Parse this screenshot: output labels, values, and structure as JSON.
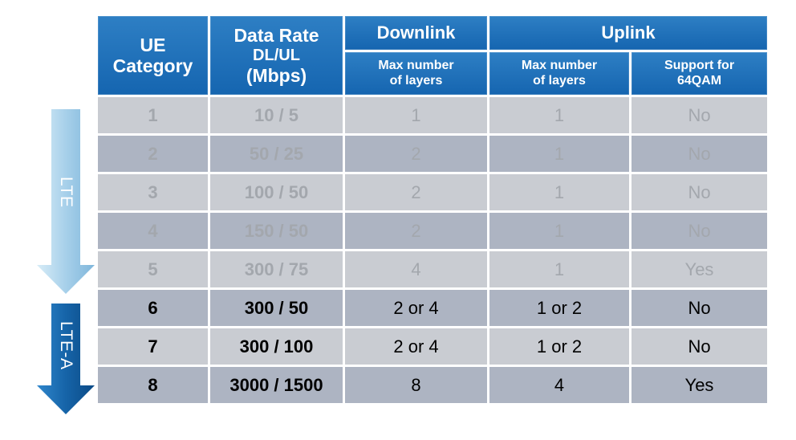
{
  "arrows": [
    {
      "label": "LTE",
      "color": "#a9cfe8"
    },
    {
      "label": "LTE-A",
      "color": "#1664a8"
    }
  ],
  "table": {
    "header": {
      "ue_category": "UE\nCategory",
      "data_rate": "Data Rate",
      "data_rate_sub": "DL/UL",
      "data_rate_unit": "(Mbps)",
      "downlink": "Downlink",
      "uplink": "Uplink",
      "dl_layers": "Max  number\nof layers",
      "ul_layers": "Max  number\nof layers",
      "ul_64qam": "Support for\n64QAM"
    },
    "rows": [
      {
        "category": "1",
        "rate": "10 / 5",
        "dl_layers": "1",
        "ul_layers": "1",
        "qam64": "No",
        "group": "LTE"
      },
      {
        "category": "2",
        "rate": "50 / 25",
        "dl_layers": "2",
        "ul_layers": "1",
        "qam64": "No",
        "group": "LTE"
      },
      {
        "category": "3",
        "rate": "100 / 50",
        "dl_layers": "2",
        "ul_layers": "1",
        "qam64": "No",
        "group": "LTE"
      },
      {
        "category": "4",
        "rate": "150 / 50",
        "dl_layers": "2",
        "ul_layers": "1",
        "qam64": "No",
        "group": "LTE"
      },
      {
        "category": "5",
        "rate": "300 / 75",
        "dl_layers": "4",
        "ul_layers": "1",
        "qam64": "Yes",
        "group": "LTE"
      },
      {
        "category": "6",
        "rate": "300 / 50",
        "dl_layers": "2 or 4",
        "ul_layers": "1 or 2",
        "qam64": "No",
        "group": "LTE-A"
      },
      {
        "category": "7",
        "rate": "300 / 100",
        "dl_layers": "2 or 4",
        "ul_layers": "1 or 2",
        "qam64": "No",
        "group": "LTE-A"
      },
      {
        "category": "8",
        "rate": "3000 / 1500",
        "dl_layers": "8",
        "ul_layers": "4",
        "qam64": "Yes",
        "group": "LTE-A"
      }
    ]
  },
  "colors": {
    "header_blue": "#1a6cb6",
    "row_light": "#c9ccd2",
    "row_dark": "#adb4c2",
    "lte_text": "#a3a7ad",
    "ltea_text": "#000000"
  }
}
